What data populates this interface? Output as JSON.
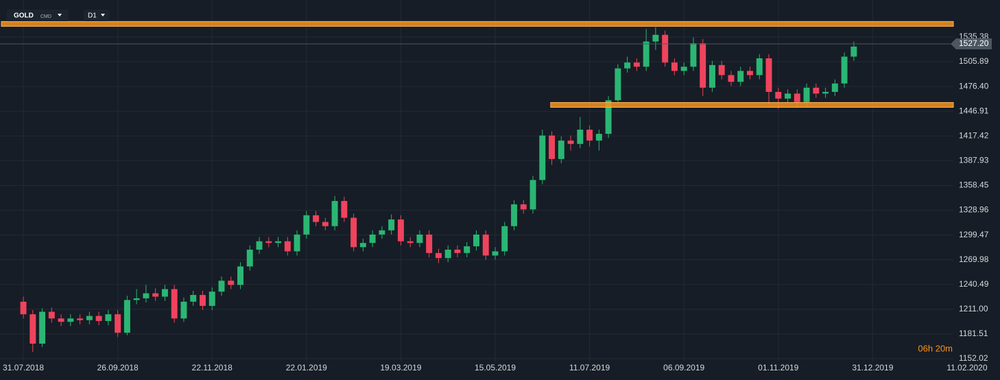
{
  "chart_data": {
    "type": "candlestick",
    "symbol": "GOLD",
    "instrument_type": "CMD",
    "timeframe": "D1",
    "countdown": "06h 20m",
    "last_price": {
      "value": 1527.2,
      "label": "1527.20"
    },
    "up_color": "#2bb673",
    "down_color": "#f0435d",
    "level_color": "#f7931e",
    "grid": true,
    "x": [
      0,
      4,
      8,
      12,
      16,
      20,
      24,
      28,
      32,
      36,
      40,
      44,
      48,
      52,
      56,
      60,
      64,
      68,
      72,
      76,
      80,
      84,
      88,
      92,
      96,
      100,
      104,
      108,
      112,
      116,
      120,
      124,
      128,
      132,
      136,
      140,
      144,
      148,
      152,
      156,
      160,
      164,
      168,
      172,
      176,
      180,
      184,
      188,
      192,
      196,
      200,
      204,
      208,
      212,
      216,
      220,
      224,
      228,
      232,
      236,
      240,
      244,
      248,
      252,
      256,
      260,
      264,
      268,
      272,
      276,
      280,
      284,
      288,
      292,
      296,
      300,
      304,
      308,
      312,
      316,
      320,
      324,
      328,
      332,
      336,
      340,
      344,
      348,
      352
    ],
    "open": [
      1220,
      1205,
      1170,
      1208,
      1200,
      1196,
      1200,
      1198,
      1203,
      1197,
      1205,
      1183,
      1222,
      1224,
      1230,
      1226,
      1235,
      1200,
      1220,
      1228,
      1215,
      1232,
      1245,
      1240,
      1262,
      1282,
      1292,
      1290,
      1292,
      1280,
      1300,
      1323,
      1315,
      1310,
      1340,
      1320,
      1285,
      1290,
      1300,
      1305,
      1318,
      1292,
      1290,
      1300,
      1278,
      1272,
      1282,
      1278,
      1286,
      1300,
      1275,
      1280,
      1310,
      1336,
      1330,
      1365,
      1418,
      1390,
      1412,
      1408,
      1425,
      1412,
      1420,
      1460,
      1498,
      1505,
      1500,
      1530,
      1538,
      1505,
      1495,
      1500,
      1528,
      1475,
      1502,
      1490,
      1482,
      1495,
      1490,
      1510,
      1470,
      1462,
      1468,
      1458,
      1475,
      1468,
      1470,
      1480,
      1512
    ],
    "high": [
      1226,
      1210,
      1212,
      1213,
      1205,
      1205,
      1205,
      1208,
      1208,
      1210,
      1210,
      1227,
      1235,
      1240,
      1236,
      1240,
      1240,
      1225,
      1233,
      1233,
      1237,
      1250,
      1250,
      1267,
      1287,
      1297,
      1297,
      1297,
      1297,
      1305,
      1328,
      1328,
      1320,
      1346,
      1345,
      1325,
      1295,
      1305,
      1310,
      1324,
      1323,
      1297,
      1305,
      1305,
      1283,
      1287,
      1287,
      1291,
      1305,
      1305,
      1285,
      1315,
      1341,
      1341,
      1370,
      1425,
      1423,
      1417,
      1418,
      1440,
      1430,
      1425,
      1465,
      1503,
      1512,
      1510,
      1545,
      1547,
      1543,
      1510,
      1505,
      1535,
      1533,
      1507,
      1507,
      1495,
      1500,
      1500,
      1515,
      1515,
      1475,
      1473,
      1473,
      1480,
      1480,
      1475,
      1485,
      1517,
      1530
    ],
    "low": [
      1200,
      1160,
      1166,
      1195,
      1191,
      1191,
      1193,
      1193,
      1192,
      1192,
      1178,
      1180,
      1217,
      1219,
      1221,
      1221,
      1195,
      1196,
      1215,
      1210,
      1210,
      1227,
      1235,
      1235,
      1257,
      1277,
      1285,
      1285,
      1275,
      1275,
      1295,
      1310,
      1305,
      1305,
      1315,
      1280,
      1280,
      1285,
      1295,
      1300,
      1287,
      1285,
      1285,
      1273,
      1266,
      1267,
      1273,
      1273,
      1281,
      1270,
      1270,
      1275,
      1305,
      1325,
      1325,
      1360,
      1383,
      1385,
      1400,
      1403,
      1405,
      1400,
      1415,
      1455,
      1493,
      1495,
      1495,
      1520,
      1500,
      1490,
      1490,
      1495,
      1465,
      1470,
      1485,
      1477,
      1477,
      1485,
      1485,
      1455,
      1450,
      1457,
      1453,
      1453,
      1463,
      1463,
      1465,
      1475,
      1507
    ],
    "close": [
      1205,
      1170,
      1208,
      1200,
      1196,
      1200,
      1198,
      1203,
      1197,
      1205,
      1183,
      1222,
      1224,
      1230,
      1226,
      1235,
      1200,
      1220,
      1228,
      1215,
      1232,
      1245,
      1240,
      1262,
      1282,
      1292,
      1290,
      1292,
      1280,
      1300,
      1323,
      1315,
      1310,
      1340,
      1320,
      1285,
      1290,
      1300,
      1305,
      1318,
      1292,
      1290,
      1300,
      1278,
      1272,
      1282,
      1278,
      1286,
      1300,
      1275,
      1280,
      1310,
      1336,
      1330,
      1365,
      1418,
      1390,
      1412,
      1408,
      1425,
      1412,
      1420,
      1460,
      1498,
      1505,
      1500,
      1530,
      1538,
      1505,
      1495,
      1500,
      1528,
      1475,
      1502,
      1490,
      1482,
      1495,
      1490,
      1510,
      1470,
      1462,
      1468,
      1458,
      1475,
      1468,
      1470,
      1480,
      1512,
      1524
    ],
    "levels": [
      {
        "y": 1551,
        "x_start": -9.9
      },
      {
        "y": 1454.5,
        "x_start": 223.5
      }
    ],
    "xlim": [
      -9.9,
      394.2
    ],
    "xticks": [
      {
        "value": 0,
        "label": "31.07.2018"
      },
      {
        "value": 40,
        "label": "26.09.2018"
      },
      {
        "value": 80,
        "label": "22.11.2018"
      },
      {
        "value": 120,
        "label": "22.01.2019"
      },
      {
        "value": 160,
        "label": "19.03.2019"
      },
      {
        "value": 200,
        "label": "15.05.2019"
      },
      {
        "value": 240,
        "label": "11.07.2019"
      },
      {
        "value": 280,
        "label": "06.09.2019"
      },
      {
        "value": 320,
        "label": "01.11.2019"
      },
      {
        "value": 360,
        "label": "31.12.2019"
      },
      {
        "value": 400,
        "label": "11.02.2020"
      }
    ],
    "ylim": [
      1148.75,
      1579.5
    ],
    "yticks": [
      1152.02,
      1181.51,
      {
        "value": 1211,
        "label": "1211.00"
      },
      1240.49,
      1269.98,
      1299.47,
      1328.96,
      1358.45,
      1387.93,
      1417.42,
      1446.91,
      {
        "value": 1476.4,
        "label": "1476.40"
      },
      1505.89,
      1535.38
    ]
  }
}
